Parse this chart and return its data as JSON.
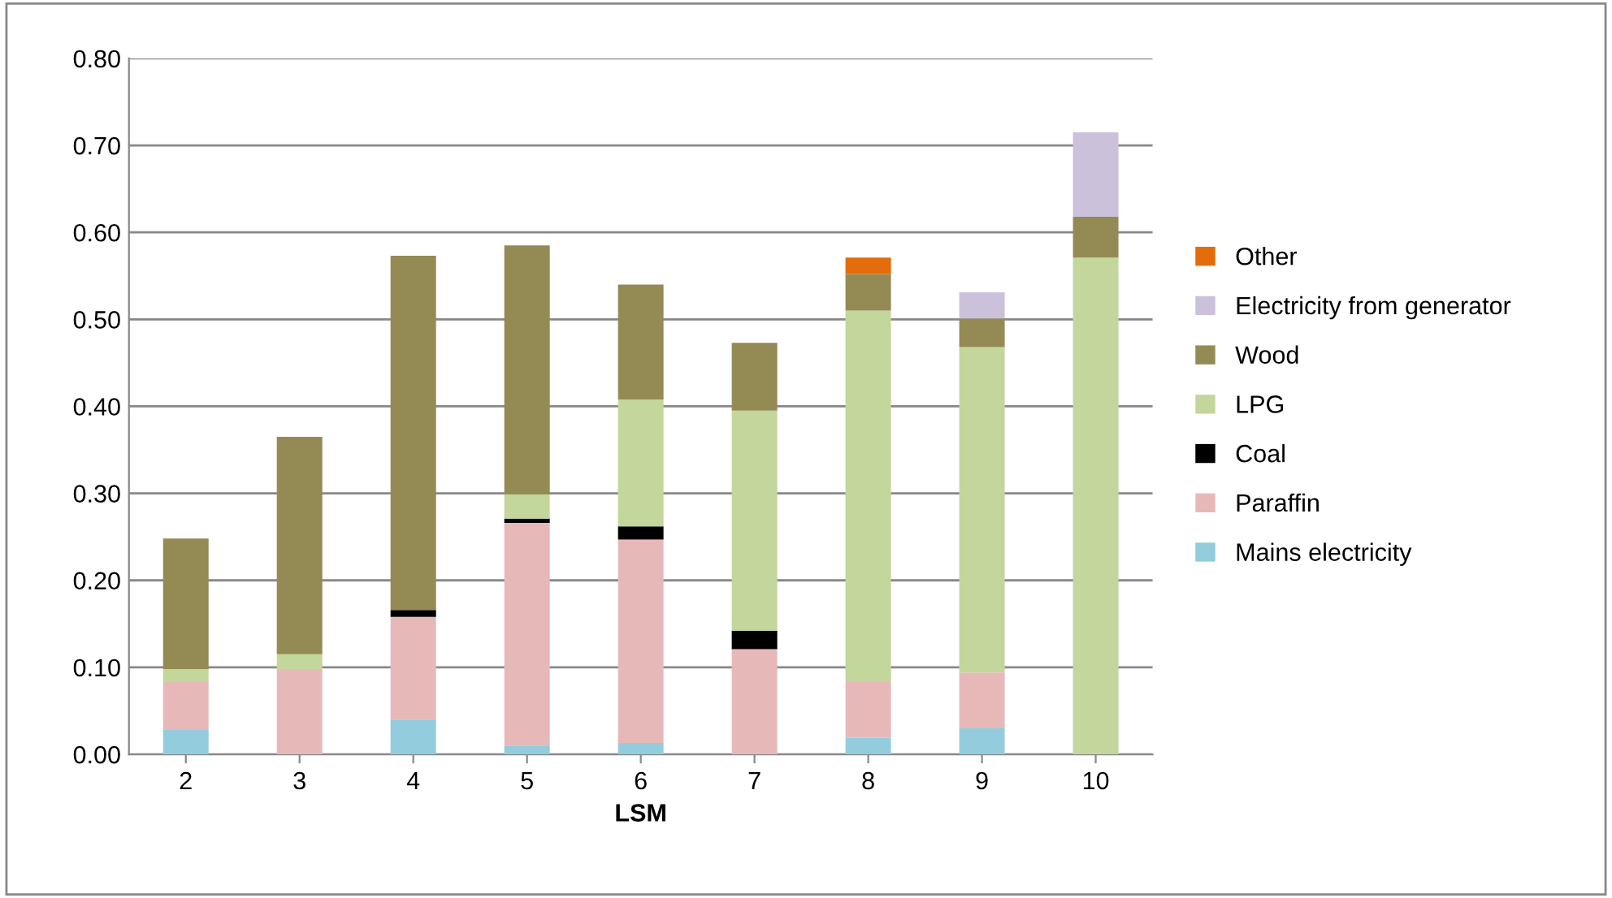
{
  "chart_data": {
    "type": "bar",
    "stacked": true,
    "xlabel": "LSM",
    "categories": [
      "2",
      "3",
      "4",
      "5",
      "6",
      "7",
      "8",
      "9",
      "10"
    ],
    "ylim": [
      0,
      0.8
    ],
    "yticks": [
      {
        "value": 0,
        "label": "0.00"
      },
      {
        "value": 0.1,
        "label": "0.10"
      },
      {
        "value": 0.2,
        "label": "0.20"
      },
      {
        "value": 0.3,
        "label": "0.30"
      },
      {
        "value": 0.4,
        "label": "0.40"
      },
      {
        "value": 0.5,
        "label": "0.50"
      },
      {
        "value": 0.6,
        "label": "0.60"
      },
      {
        "value": 0.7,
        "label": "0.70"
      },
      {
        "value": 0.8,
        "label": "0.80"
      }
    ],
    "grid": "y",
    "legend": "right",
    "series": [
      {
        "name": "Mains electricity",
        "color": "#93cddd",
        "values": [
          0.028,
          null,
          0.04,
          0.01,
          0.013,
          null,
          0.019,
          0.03,
          null
        ]
      },
      {
        "name": "Paraffin",
        "color": "#e6b9b8",
        "values": [
          0.055,
          0.098,
          0.118,
          0.256,
          0.234,
          0.121,
          0.064,
          0.064,
          null
        ]
      },
      {
        "name": "Coal",
        "color": "#000000",
        "values": [
          null,
          null,
          0.008,
          0.005,
          0.015,
          0.021,
          null,
          null,
          null
        ]
      },
      {
        "name": "LPG",
        "color": "#c3d69b",
        "values": [
          0.015,
          0.017,
          null,
          0.028,
          0.146,
          0.253,
          0.427,
          0.374,
          0.571
        ]
      },
      {
        "name": "Wood",
        "color": "#948a54",
        "values": [
          0.15,
          0.25,
          0.407,
          0.286,
          0.132,
          0.078,
          0.042,
          0.033,
          0.047
        ]
      },
      {
        "name": "Electricity from generator",
        "color": "#ccc1da",
        "values": [
          null,
          null,
          null,
          null,
          null,
          null,
          null,
          0.03,
          0.097
        ]
      },
      {
        "name": "Other",
        "color": "#e46c0a",
        "values": [
          null,
          null,
          null,
          null,
          null,
          null,
          0.019,
          null,
          null
        ]
      }
    ]
  }
}
